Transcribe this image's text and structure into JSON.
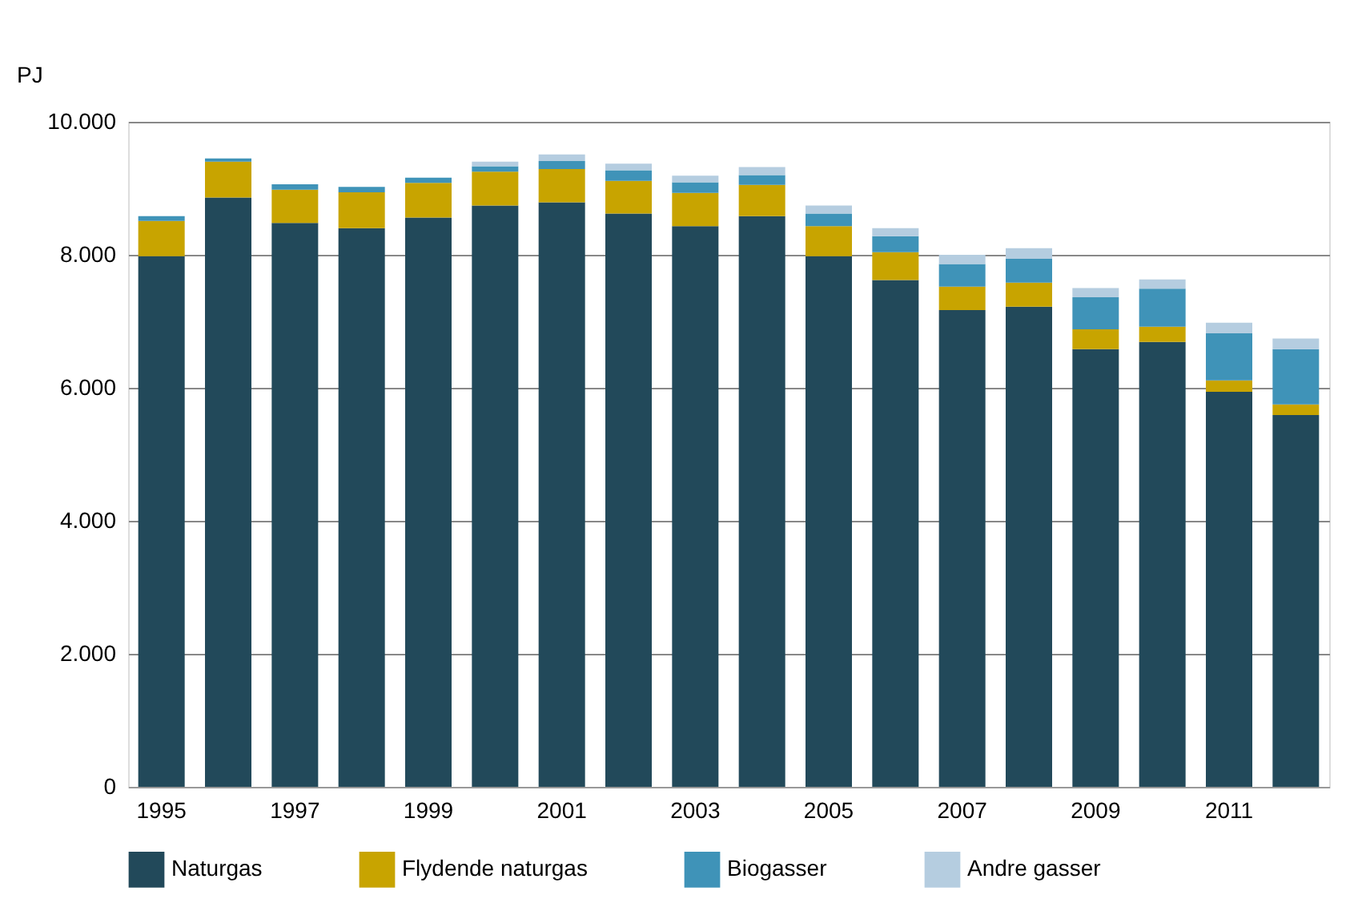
{
  "chart_data": {
    "type": "bar",
    "stacked": true,
    "ylabel": "PJ",
    "categories": [
      "1995",
      null,
      "1997",
      null,
      "1999",
      null,
      "2001",
      null,
      "2003",
      null,
      "2005",
      null,
      "2007",
      null,
      "2009",
      null,
      "2011",
      null
    ],
    "series": [
      {
        "name": "Naturgas",
        "color": "#22495a",
        "values": [
          7980,
          8860,
          8480,
          8400,
          8560,
          8740,
          8790,
          8620,
          8430,
          8580,
          7980,
          7620,
          7170,
          7220,
          6580,
          6690,
          5940,
          5590
        ]
      },
      {
        "name": "Flydende naturgas",
        "color": "#c8a400",
        "values": [
          530,
          540,
          500,
          540,
          520,
          510,
          500,
          490,
          500,
          470,
          450,
          420,
          350,
          360,
          300,
          230,
          170,
          160
        ]
      },
      {
        "name": "Biogasser",
        "color": "#3f93b8",
        "values": [
          70,
          50,
          80,
          80,
          80,
          80,
          120,
          160,
          160,
          150,
          190,
          240,
          340,
          360,
          480,
          570,
          710,
          830
        ]
      },
      {
        "name": "Andre gasser",
        "color": "#b5cde0",
        "values": [
          null,
          null,
          null,
          null,
          null,
          70,
          100,
          100,
          100,
          120,
          120,
          120,
          140,
          160,
          140,
          140,
          160,
          160
        ]
      }
    ],
    "ylim": [
      0,
      10000
    ],
    "yticks": [
      0,
      {
        "value": 2000,
        "label": "2.000"
      },
      {
        "value": 4000,
        "label": "4.000"
      },
      {
        "value": 6000,
        "label": "6.000"
      },
      {
        "value": 8000,
        "label": "8.000"
      },
      {
        "value": 10000,
        "label": "10.000"
      }
    ],
    "grid": "y",
    "legend": "bottom"
  }
}
